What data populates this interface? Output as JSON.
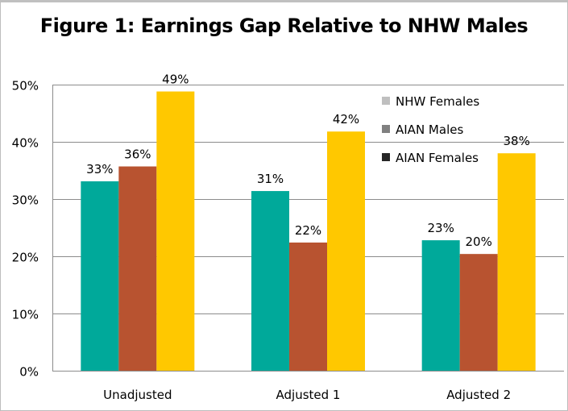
{
  "chart_data": {
    "type": "bar",
    "title": "Figure 1: Earnings Gap Relative to NHW Males",
    "xlabel": "",
    "ylabel": "",
    "ylim": [
      0,
      50
    ],
    "yticks": [
      "0%",
      "10%",
      "20%",
      "30%",
      "40%",
      "50%"
    ],
    "grid": true,
    "legend_position": "top-right",
    "categories": [
      "Unadjusted",
      "Adjusted 1",
      "Adjusted 2"
    ],
    "series": [
      {
        "name": "NHW Females",
        "color": "#00A99A",
        "legend_color": "#BFBFBF",
        "values": [
          33.1,
          31.4,
          22.8
        ],
        "labels": [
          "33%",
          "31%",
          "23%"
        ]
      },
      {
        "name": "AIAN Males",
        "color": "#B85330",
        "legend_color": "#808080",
        "values": [
          35.7,
          22.4,
          20.4
        ],
        "labels": [
          "36%",
          "22%",
          "20%"
        ]
      },
      {
        "name": "AIAN Females",
        "color": "#FFC800",
        "legend_color": "#262626",
        "values": [
          48.8,
          41.8,
          38.0
        ],
        "labels": [
          "49%",
          "42%",
          "38%"
        ]
      }
    ]
  }
}
